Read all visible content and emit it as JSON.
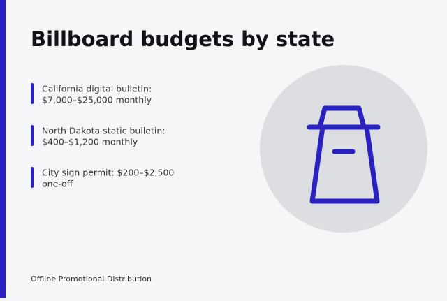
{
  "title": "Billboard budgets by state",
  "items": [
    {
      "lines": [
        "California digital bulletin:",
        "$7,000–$25,000 monthly"
      ]
    },
    {
      "lines": [
        "North Dakota static bulletin:",
        "$400–$1,200 monthly"
      ]
    },
    {
      "lines": [
        "City sign permit: $200–$2,500",
        "one-off"
      ]
    }
  ],
  "footer": "Offline Promotional Distribution"
}
